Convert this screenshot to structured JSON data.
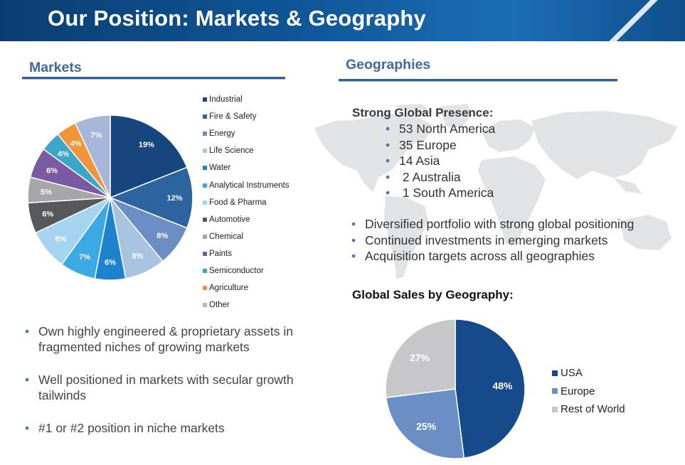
{
  "title": "Our Position: Markets & Geography",
  "markets": {
    "heading": "Markets",
    "bullets": [
      "Own highly engineered & proprietary assets in fragmented niches of growing markets",
      "Well positioned in markets with secular growth tailwinds",
      "#1 or #2 position in niche markets"
    ]
  },
  "geographies": {
    "heading": "Geographies",
    "presence_title": "Strong Global Presence:",
    "presence": [
      "53 North America",
      "35 Europe",
      "14 Asia",
      " 2 Australia",
      " 1 South America"
    ],
    "bullets": [
      "Diversified portfolio with strong global positioning",
      "Continued investments in emerging markets",
      "Acquisition targets across all geographies"
    ],
    "sales_title": "Global Sales by Geography:"
  },
  "chart_data": [
    {
      "type": "pie",
      "title": "Markets",
      "categories": [
        "Industrial",
        "Fire & Safety",
        "Energy",
        "Life Science",
        "Water",
        "Analytical Instruments",
        "Food & Pharma",
        "Automotive",
        "Chemical",
        "Paints",
        "Semiconductor",
        "Agriculture",
        "Other"
      ],
      "values": [
        19,
        12,
        8,
        8,
        6,
        7,
        8,
        6,
        5,
        6,
        4,
        4,
        7
      ],
      "labels": [
        "19%",
        "12%",
        "8%",
        "8%",
        "6%",
        "7%",
        "8%",
        "6%",
        "5%",
        "6%",
        "4%",
        "4%",
        "7%"
      ],
      "colors": [
        "#17467f",
        "#2d64a0",
        "#6b8ec4",
        "#a8c3e0",
        "#1f82cf",
        "#3aa9e4",
        "#a6d3f0",
        "#57585a",
        "#a6a6a8",
        "#7a5aa3",
        "#3aa7c9",
        "#f0953a",
        "#a8b6da"
      ],
      "label_colors": [
        "#ffffff",
        "#ffffff",
        "#ffffff",
        "#ffffff",
        "#ffffff",
        "#ffffff",
        "#ffffff",
        "#ffffff",
        "#ffffff",
        "#ffffff",
        "#ffffff",
        "#ffffff",
        "#ffffff"
      ],
      "legend_position": "right"
    },
    {
      "type": "pie",
      "title": "Global Sales by Geography:",
      "categories": [
        "USA",
        "Europe",
        "Rest of World"
      ],
      "values": [
        48,
        25,
        27
      ],
      "labels": [
        "48%",
        "25%",
        "27%"
      ],
      "colors": [
        "#174a8a",
        "#6a8fc5",
        "#c7c7c9"
      ],
      "label_colors": [
        "#ffffff",
        "#ffffff",
        "#ffffff"
      ],
      "legend_position": "right"
    }
  ]
}
